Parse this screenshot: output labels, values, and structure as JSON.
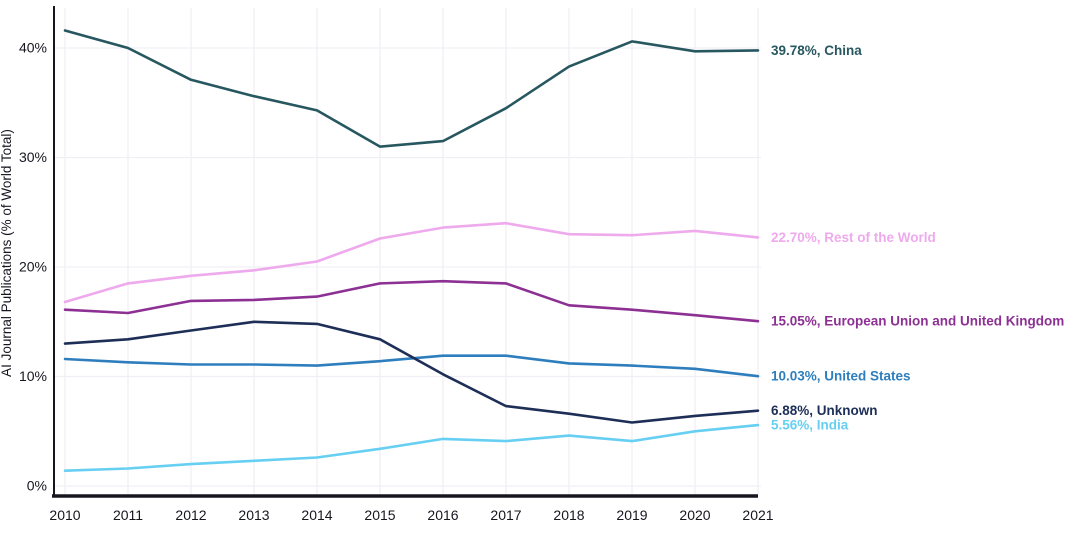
{
  "chart_data": {
    "type": "line",
    "title": "",
    "xlabel": "",
    "ylabel": "AI Journal Publications (% of World Total)",
    "grid": true,
    "legend_position": "right-end-labels",
    "ylim": [
      0,
      40
    ],
    "x": [
      2010,
      2011,
      2012,
      2013,
      2014,
      2015,
      2016,
      2017,
      2018,
      2019,
      2020,
      2021
    ],
    "x_tick_labels": [
      "2010",
      "2011",
      "2012",
      "2013",
      "2014",
      "2015",
      "2016",
      "2017",
      "2018",
      "2019",
      "2020",
      "2021"
    ],
    "y_ticks": [
      {
        "value": 0,
        "label": "0%"
      },
      {
        "value": 10,
        "label": "10%"
      },
      {
        "value": 20,
        "label": "20%"
      },
      {
        "value": 30,
        "label": "30%"
      },
      {
        "value": 40,
        "label": "40%"
      }
    ],
    "series": [
      {
        "name": "China",
        "color": "#27575f",
        "end_label": "39.78%, China",
        "final_value": 39.78,
        "values": [
          41.6,
          40.0,
          37.1,
          35.6,
          34.3,
          31.0,
          31.5,
          34.5,
          38.3,
          40.6,
          39.7,
          39.78
        ]
      },
      {
        "name": "Rest of the World",
        "color": "#eeaaec",
        "end_label": "22.70%, Rest of the World",
        "final_value": 22.7,
        "values": [
          16.8,
          18.5,
          19.2,
          19.7,
          20.5,
          22.6,
          23.6,
          24.0,
          23.0,
          22.9,
          23.3,
          22.7
        ]
      },
      {
        "name": "European Union and United Kingdom",
        "color": "#8d3094",
        "end_label": "15.05%, European Union and United Kingdom",
        "final_value": 15.05,
        "values": [
          16.1,
          15.8,
          16.9,
          17.0,
          17.3,
          18.5,
          18.7,
          18.5,
          16.5,
          16.1,
          15.6,
          15.05
        ]
      },
      {
        "name": "United States",
        "color": "#2e7ebd",
        "end_label": "10.03%, United States",
        "final_value": 10.03,
        "values": [
          11.6,
          11.3,
          11.1,
          11.1,
          11.0,
          11.4,
          11.9,
          11.9,
          11.2,
          11.0,
          10.7,
          10.03
        ]
      },
      {
        "name": "Unknown",
        "color": "#1d2e57",
        "end_label": "6.88%, Unknown",
        "final_value": 6.88,
        "values": [
          13.0,
          13.4,
          14.2,
          15.0,
          14.8,
          13.4,
          10.2,
          7.3,
          6.6,
          5.8,
          6.4,
          6.88
        ]
      },
      {
        "name": "India",
        "color": "#66cff2",
        "end_label": "5.56%, India",
        "final_value": 5.56,
        "values": [
          1.4,
          1.6,
          2.0,
          2.3,
          2.6,
          3.4,
          4.3,
          4.1,
          4.6,
          4.1,
          5.0,
          5.56
        ]
      }
    ]
  }
}
